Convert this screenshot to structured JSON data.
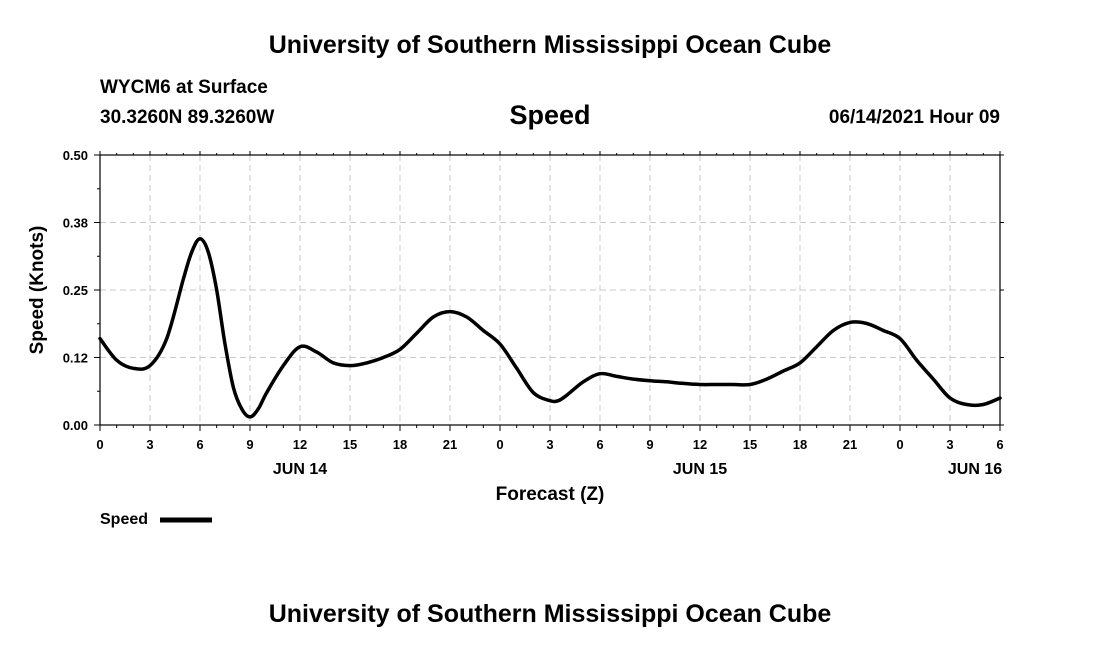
{
  "header": {
    "title": "University of Southern Mississippi Ocean Cube",
    "station": "WYCM6 at Surface",
    "coords": "30.3260N  89.3260W",
    "parameter": "Speed",
    "issued": "06/14/2021 Hour 09"
  },
  "footer": {
    "title": "University of Southern Mississippi Ocean Cube"
  },
  "colors": {
    "line": "#000000",
    "grid": "#c8c8c8",
    "background": "#ffffff"
  },
  "chart_data": {
    "type": "line",
    "title": "Speed",
    "xlabel": "Forecast (Z)",
    "ylabel": "Speed (Knots)",
    "ylim": [
      0,
      0.5
    ],
    "xlim": [
      0,
      54
    ],
    "grid": true,
    "yticks": [
      {
        "v": 0,
        "label": "0.00"
      },
      {
        "v": 0.125,
        "label": "0.12"
      },
      {
        "v": 0.25,
        "label": "0.25"
      },
      {
        "v": 0.375,
        "label": "0.38"
      },
      {
        "v": 0.5,
        "label": "0.50"
      }
    ],
    "xticks": [
      {
        "v": 0,
        "label": "0"
      },
      {
        "v": 3,
        "label": "3"
      },
      {
        "v": 6,
        "label": "6"
      },
      {
        "v": 9,
        "label": "9"
      },
      {
        "v": 12,
        "label": "12"
      },
      {
        "v": 15,
        "label": "15"
      },
      {
        "v": 18,
        "label": "18"
      },
      {
        "v": 21,
        "label": "21"
      },
      {
        "v": 24,
        "label": "0"
      },
      {
        "v": 27,
        "label": "3"
      },
      {
        "v": 30,
        "label": "6"
      },
      {
        "v": 33,
        "label": "9"
      },
      {
        "v": 36,
        "label": "12"
      },
      {
        "v": 39,
        "label": "15"
      },
      {
        "v": 42,
        "label": "18"
      },
      {
        "v": 45,
        "label": "21"
      },
      {
        "v": 48,
        "label": "0"
      },
      {
        "v": 51,
        "label": "3"
      },
      {
        "v": 54,
        "label": "6"
      }
    ],
    "day_labels": [
      {
        "v": 12,
        "label": "JUN 14"
      },
      {
        "v": 36,
        "label": "JUN 15"
      },
      {
        "v": 52.5,
        "label": "JUN 16"
      }
    ],
    "legend": {
      "label": "Speed",
      "position": "bottom-left"
    },
    "series": [
      {
        "name": "Speed",
        "x": [
          0,
          1,
          2,
          3,
          4,
          5,
          5.5,
          6,
          6.5,
          7,
          7.5,
          8,
          8.5,
          9,
          9.5,
          10,
          11,
          12,
          13,
          14,
          15,
          16,
          17,
          18,
          19,
          20,
          21,
          22,
          23,
          24,
          25,
          26,
          27,
          27.5,
          28,
          29,
          30,
          31,
          32,
          33,
          34,
          35,
          36,
          37,
          38,
          39,
          40,
          41,
          42,
          43,
          44,
          45,
          46,
          47,
          48,
          49,
          50,
          51,
          52,
          53,
          54
        ],
        "y": [
          0.16,
          0.12,
          0.105,
          0.11,
          0.16,
          0.27,
          0.32,
          0.345,
          0.32,
          0.25,
          0.15,
          0.07,
          0.03,
          0.015,
          0.03,
          0.06,
          0.11,
          0.145,
          0.135,
          0.115,
          0.11,
          0.115,
          0.125,
          0.14,
          0.17,
          0.2,
          0.21,
          0.2,
          0.175,
          0.15,
          0.105,
          0.06,
          0.045,
          0.045,
          0.055,
          0.08,
          0.095,
          0.09,
          0.085,
          0.082,
          0.08,
          0.077,
          0.075,
          0.075,
          0.075,
          0.075,
          0.085,
          0.1,
          0.115,
          0.145,
          0.175,
          0.19,
          0.188,
          0.175,
          0.16,
          0.12,
          0.085,
          0.05,
          0.038,
          0.038,
          0.05
        ]
      }
    ]
  }
}
